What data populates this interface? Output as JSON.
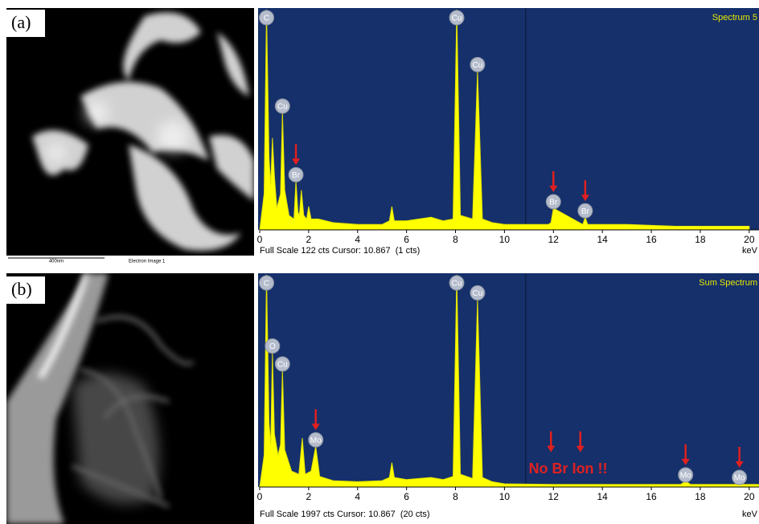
{
  "images": [
    {
      "panel_label": "(a)",
      "scale_bar": "400nm",
      "caption": "Electron Image 1"
    },
    {
      "panel_label": "(b)"
    }
  ],
  "chart_data": [
    {
      "type": "area",
      "title": "Spectrum 5",
      "status": "Full Scale 122 cts Cursor: 10.867  (1 cts)",
      "x_label": "keV",
      "color": "#ffff00",
      "background": "#15306a",
      "cursor": 10.867,
      "xlim": [
        0,
        20.4
      ],
      "xticks": [
        0,
        2,
        4,
        6,
        8,
        10,
        12,
        14,
        16,
        18,
        20
      ],
      "ylim": [
        0,
        122
      ],
      "x": [
        0,
        0.18,
        0.28,
        0.38,
        0.45,
        0.52,
        0.6,
        0.7,
        0.85,
        0.93,
        1.02,
        1.2,
        1.4,
        1.48,
        1.56,
        1.62,
        1.7,
        1.8,
        1.92,
        2.0,
        2.1,
        2.4,
        3,
        4,
        5,
        5.3,
        5.4,
        5.5,
        6,
        6.5,
        7,
        7.5,
        7.9,
        8.05,
        8.2,
        8.7,
        8.9,
        9.1,
        9.5,
        10,
        11,
        11.8,
        11.9,
        12,
        13.2,
        13.3,
        13.4,
        15,
        17,
        20
      ],
      "values": [
        0,
        20,
        122,
        40,
        25,
        51,
        30,
        12,
        20,
        65,
        22,
        8,
        6,
        27,
        10,
        8,
        22,
        8,
        6,
        13,
        6,
        6,
        4,
        3,
        3,
        5,
        13,
        5,
        5,
        6,
        7,
        5,
        6,
        122,
        8,
        6,
        88,
        6,
        4,
        3,
        3,
        3,
        4,
        12,
        3,
        7,
        3,
        3,
        2,
        2
      ],
      "peak_labels": [
        {
          "label": "C",
          "x": 0.28
        },
        {
          "label": "Cu",
          "x": 0.93
        },
        {
          "label": "Br",
          "x": 1.48
        },
        {
          "label": "Cu",
          "x": 8.05
        },
        {
          "label": "Cu",
          "x": 8.9
        },
        {
          "label": "Br",
          "x": 12
        },
        {
          "label": "Br",
          "x": 13.3
        }
      ],
      "arrows": [
        1.48,
        12,
        13.3
      ]
    },
    {
      "type": "area",
      "title": "Sum Spectrum",
      "status": "Full Scale 1997 cts Cursor: 10.867  (20 cts)",
      "x_label": "keV",
      "color": "#ffff00",
      "background": "#15306a",
      "cursor": 10.867,
      "annotation": "No Br Ion !!",
      "xlim": [
        0,
        20.4
      ],
      "xticks": [
        0,
        2,
        4,
        6,
        8,
        10,
        12,
        14,
        16,
        18,
        20
      ],
      "ylim": [
        0,
        1997
      ],
      "x": [
        0,
        0.18,
        0.28,
        0.38,
        0.45,
        0.52,
        0.6,
        0.75,
        0.85,
        0.93,
        1.02,
        1.3,
        1.6,
        1.74,
        1.86,
        2.1,
        2.29,
        2.45,
        3,
        4,
        5,
        5.3,
        5.4,
        5.5,
        6,
        6.5,
        7,
        7.5,
        7.9,
        8.05,
        8.2,
        8.7,
        8.9,
        9.1,
        9.5,
        10,
        12,
        15,
        17.2,
        17.4,
        17.6,
        19.4,
        19.6,
        19.8,
        20.4
      ],
      "values": [
        0,
        300,
        1997,
        600,
        400,
        1267,
        500,
        300,
        400,
        1098,
        350,
        150,
        120,
        461,
        120,
        150,
        384,
        100,
        60,
        50,
        60,
        90,
        230,
        90,
        70,
        80,
        90,
        70,
        100,
        1997,
        120,
        80,
        1767,
        90,
        50,
        30,
        25,
        25,
        25,
        54,
        25,
        25,
        30,
        25,
        25
      ],
      "peak_labels": [
        {
          "label": "C",
          "x": 0.28
        },
        {
          "label": "O",
          "x": 0.52
        },
        {
          "label": "Cu",
          "x": 0.93
        },
        {
          "label": "Mo",
          "x": 2.29
        },
        {
          "label": "Cu",
          "x": 8.05
        },
        {
          "label": "Cu",
          "x": 8.9
        },
        {
          "label": "Mo",
          "x": 17.4
        },
        {
          "label": "Mo",
          "x": 19.6
        }
      ],
      "arrows": [
        2.29,
        11.9,
        13.1,
        17.4,
        19.6
      ]
    }
  ]
}
